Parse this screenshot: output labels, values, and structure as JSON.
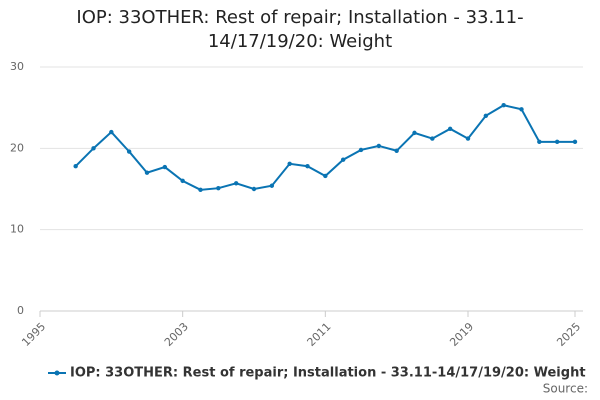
{
  "chart_data": {
    "type": "line",
    "title": "IOP: 33OTHER: Rest of repair; Installation - 33.11-14/17/19/20: Weight",
    "x": [
      1997,
      1998,
      1999,
      2000,
      2001,
      2002,
      2003,
      2004,
      2005,
      2006,
      2007,
      2008,
      2009,
      2010,
      2011,
      2012,
      2013,
      2014,
      2015,
      2016,
      2017,
      2018,
      2019,
      2020,
      2021,
      2022,
      2023,
      2024,
      2025
    ],
    "series": [
      {
        "name": "IOP: 33OTHER: Rest of repair; Installation - 33.11-14/17/19/20: Weight",
        "color": "#0a74b3",
        "values": [
          17.8,
          20.0,
          22.0,
          19.6,
          17.0,
          17.7,
          16.0,
          14.9,
          15.1,
          15.7,
          15.0,
          15.4,
          18.1,
          17.8,
          16.6,
          18.6,
          19.8,
          20.3,
          19.7,
          21.9,
          21.2,
          22.4,
          21.2,
          24.0,
          25.3,
          24.8,
          20.8,
          20.8,
          20.8
        ]
      }
    ],
    "xlim": [
      1995,
      2025
    ],
    "xticks": [
      1995,
      2003,
      2011,
      2019,
      2025
    ],
    "ylim": [
      0,
      30
    ],
    "yticks": [
      0,
      10,
      20,
      30
    ],
    "grid": true,
    "legend": "bottom",
    "source_label": "Source:"
  }
}
